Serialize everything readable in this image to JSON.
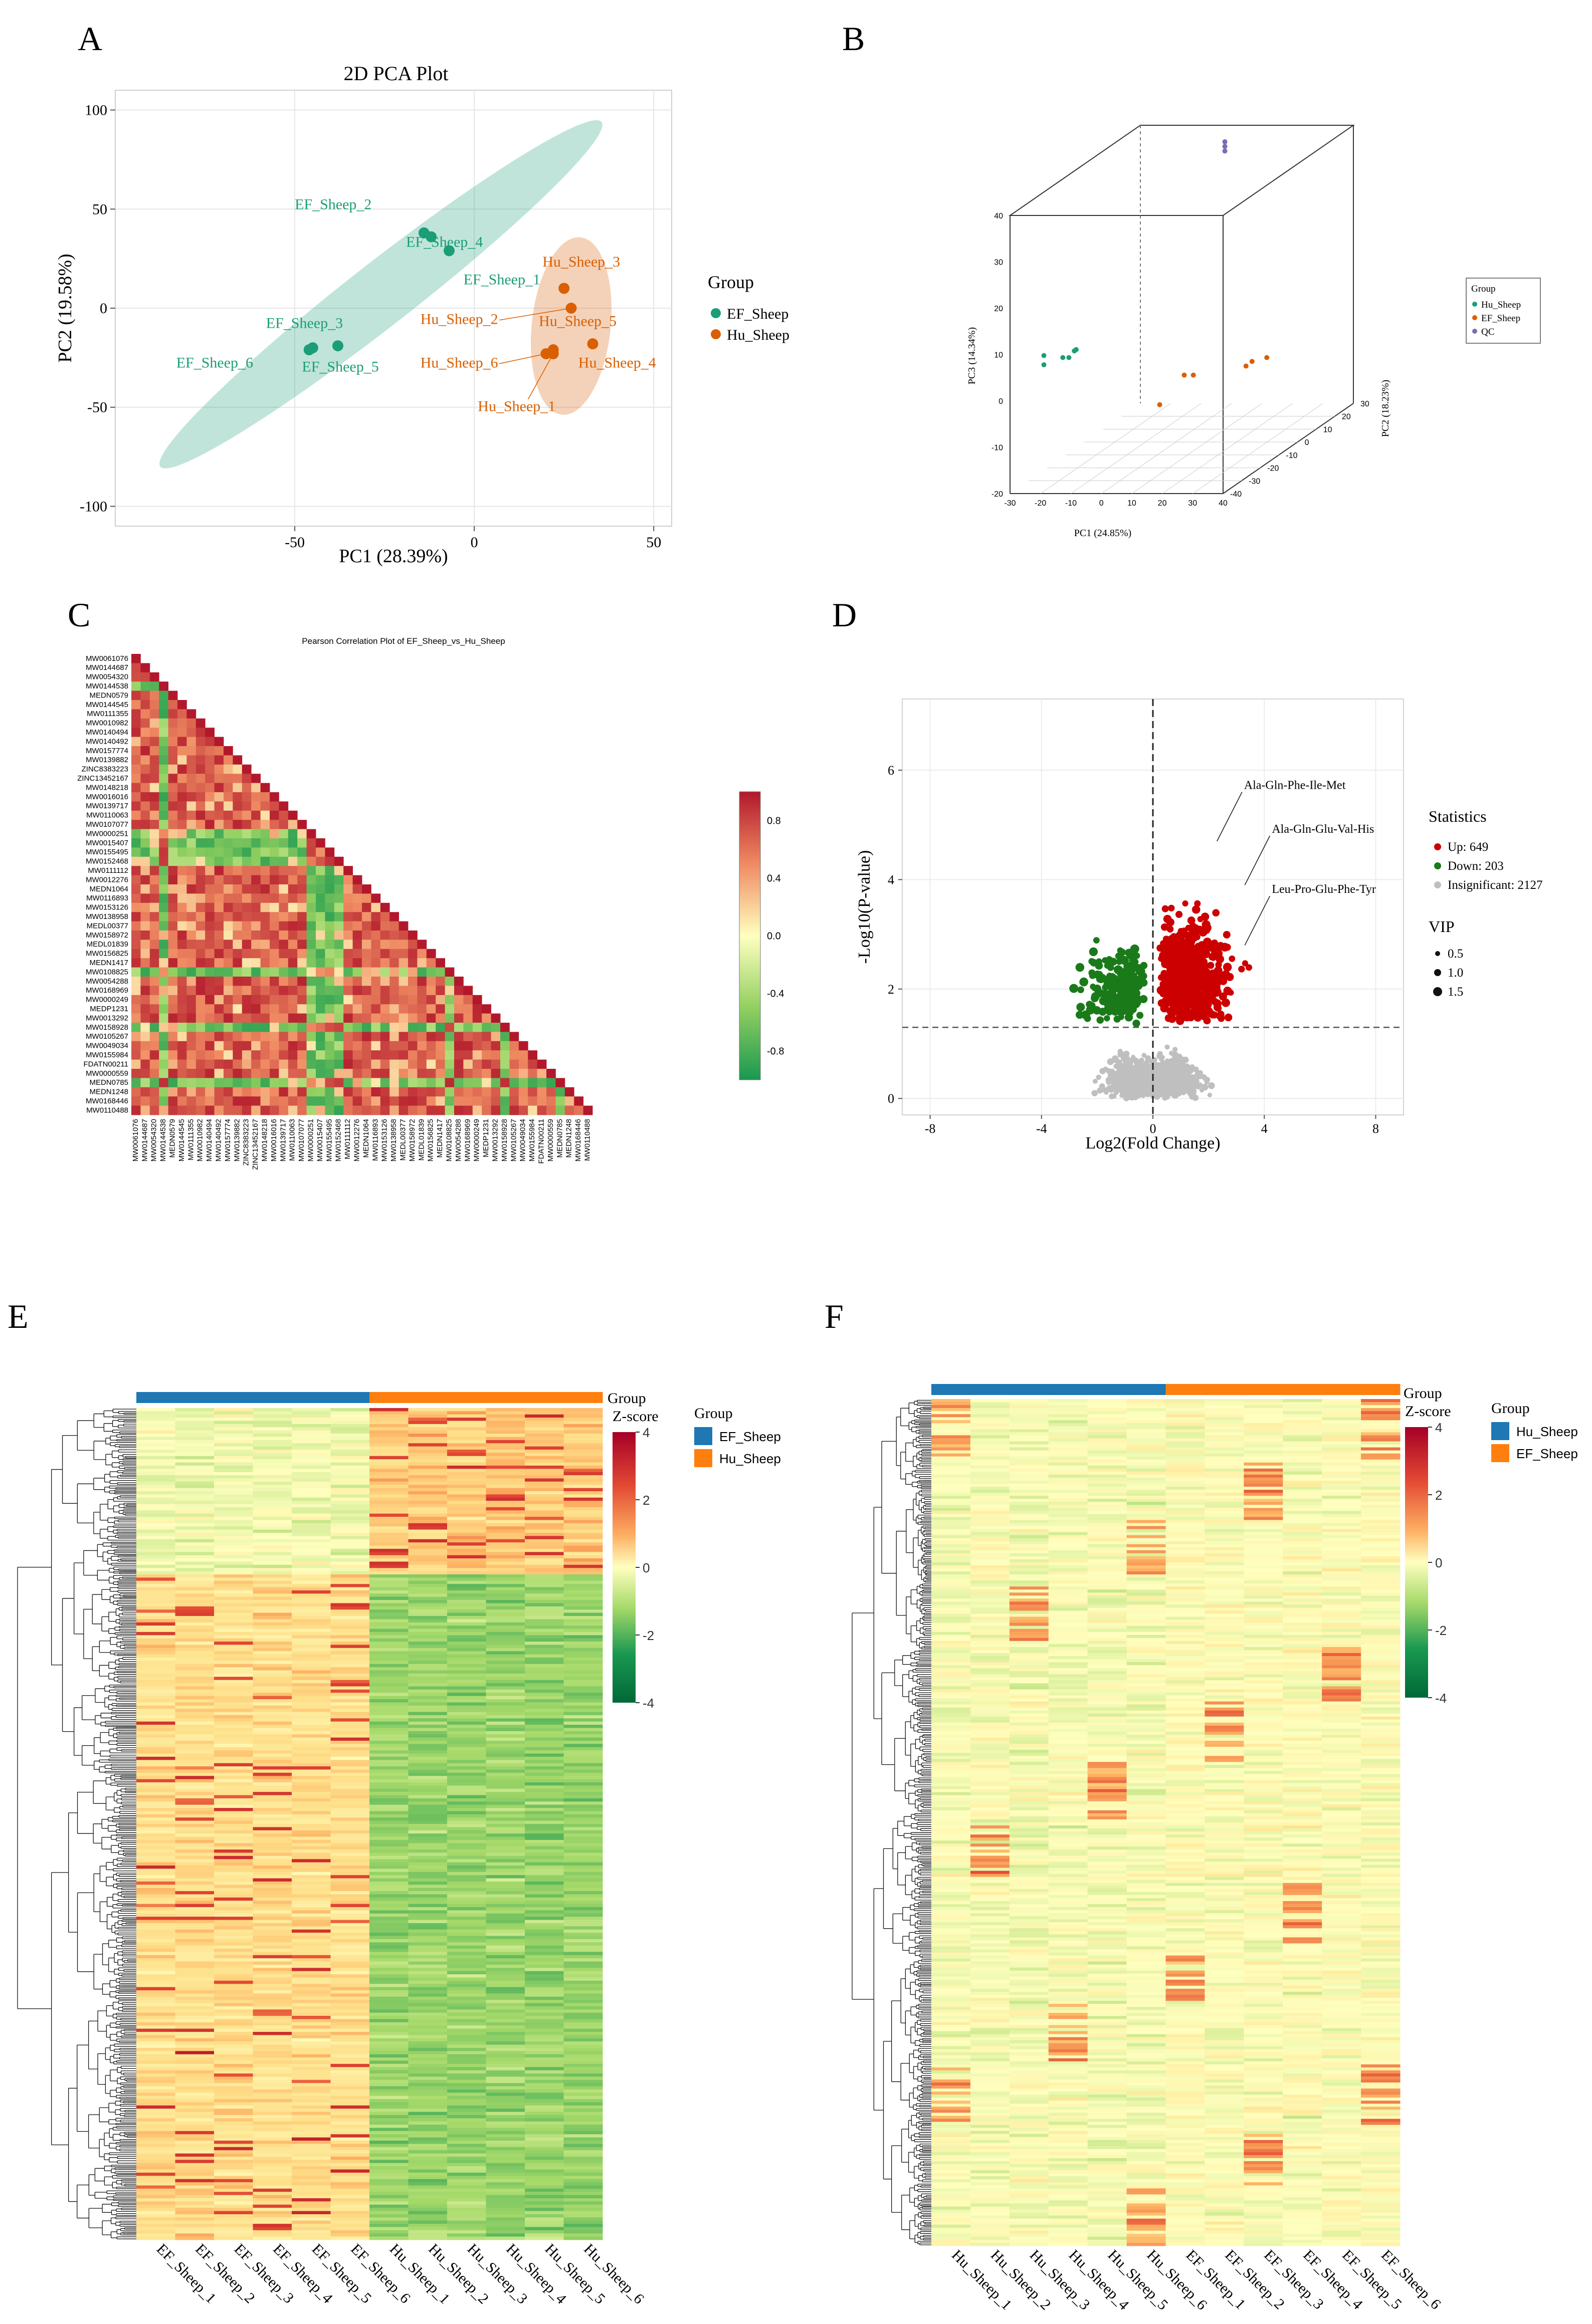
{
  "colors": {
    "ef_green": "#1b9e77",
    "hu_orange": "#d95f02",
    "qc_purple": "#7570b3",
    "up_red": "#cc0000",
    "down_green": "#1a7a1a",
    "insig_grey": "#bfbfbf",
    "hm_blue": "#1f77b4",
    "hm_orange": "#ff7f0e"
  },
  "chart_data": [
    {
      "panel": "A",
      "type": "scatter",
      "title": "2D PCA Plot",
      "xlabel": "PC1 (28.39%)",
      "ylabel": "PC2 (19.58%)",
      "xlim": [
        -100,
        55
      ],
      "ylim": [
        -110,
        110
      ],
      "xticks": [
        -50,
        0,
        50
      ],
      "yticks": [
        -100,
        -50,
        0,
        50,
        100
      ],
      "legend_title": "Group",
      "series": [
        {
          "name": "EF_Sheep",
          "points": [
            {
              "label": "EF_Sheep_2",
              "x": -14,
              "y": 38
            },
            {
              "label": "EF_Sheep_4",
              "x": -7,
              "y": 29
            },
            {
              "label": "EF_Sheep_1",
              "x": -12,
              "y": 36
            },
            {
              "label": "EF_Sheep_3",
              "x": -45,
              "y": -20
            },
            {
              "label": "EF_Sheep_6",
              "x": -46,
              "y": -21
            },
            {
              "label": "EF_Sheep_5",
              "x": -38,
              "y": -19
            }
          ]
        },
        {
          "name": "Hu_Sheep",
          "points": [
            {
              "label": "Hu_Sheep_3",
              "x": 25,
              "y": 10
            },
            {
              "label": "Hu_Sheep_2",
              "x": 27,
              "y": 0
            },
            {
              "label": "Hu_Sheep_5",
              "x": 22,
              "y": -21
            },
            {
              "label": "Hu_Sheep_6",
              "x": 20,
              "y": -23
            },
            {
              "label": "Hu_Sheep_4",
              "x": 33,
              "y": -18
            },
            {
              "label": "Hu_Sheep_1",
              "x": 22,
              "y": -23
            }
          ]
        }
      ]
    },
    {
      "panel": "B",
      "type": "scatter",
      "title": "",
      "xlabel": "PC1 (24.85%)",
      "ylabel": "PC2 (18.23%)",
      "zlabel": "PC3 (14.34%)",
      "xticks": [
        -30,
        -20,
        -10,
        0,
        10,
        20,
        30,
        40
      ],
      "yticks": [
        -40,
        -30,
        -20,
        -10,
        0,
        10,
        20,
        30
      ],
      "zticks": [
        -20,
        -10,
        0,
        10,
        20,
        30,
        40
      ],
      "legend_title": "Group",
      "series": [
        {
          "name": "Hu_Sheep",
          "points": [
            [
              -25,
              -30,
              5
            ],
            [
              -25,
              -30,
              7
            ],
            [
              -20,
              -28,
              6
            ],
            [
              -18,
              -28,
              6
            ],
            [
              -15,
              -30,
              8
            ],
            [
              -15,
              -29,
              8
            ]
          ]
        },
        {
          "name": "EF_Sheep",
          "points": [
            [
              20,
              5,
              -5
            ],
            [
              22,
              5,
              -4
            ],
            [
              25,
              8,
              -4
            ],
            [
              15,
              -20,
              0
            ],
            [
              18,
              -20,
              0
            ],
            [
              10,
              -25,
              -5
            ]
          ]
        },
        {
          "name": "QC",
          "points": [
            [
              10,
              10,
              40
            ],
            [
              10,
              10,
              41
            ],
            [
              10,
              10,
              42
            ]
          ]
        }
      ]
    },
    {
      "panel": "C",
      "type": "heatmap",
      "title": "Pearson Correlation Plot of EF_Sheep_vs_Hu_Sheep",
      "labels": [
        "MW0061076",
        "MW0144687",
        "MW0054320",
        "MW0144538",
        "MEDN0579",
        "MW0144545",
        "MW0111355",
        "MW0010982",
        "MW0140494",
        "MW0140492",
        "MW0157774",
        "MW0139882",
        "ZINC8383223",
        "ZINC13452167",
        "MW0148218",
        "MW0016016",
        "MW0139717",
        "MW0110063",
        "MW0107077",
        "MW0000251",
        "MW0015407",
        "MW0155495",
        "MW0152468",
        "MW0111112",
        "MW0012276",
        "MEDN1064",
        "MW0116893",
        "MW0153126",
        "MW0138958",
        "MEDL00377",
        "MW0158972",
        "MEDL01839",
        "MW0156825",
        "MEDN1417",
        "MW0108825",
        "MW0054288",
        "MW0168969",
        "MW0000249",
        "MEDP1231",
        "MW0013292",
        "MW0158928",
        "MW0105267",
        "MW0049034",
        "MW0155984",
        "FDATN00211",
        "MW0000559",
        "MEDN0785",
        "MEDN1248",
        "MW0168446",
        "MW0110488"
      ],
      "colorbar_ticks": [
        "0.8",
        "0.4",
        "0.0",
        "-0.4",
        "-0.8"
      ],
      "value_range": [
        -1,
        1
      ]
    },
    {
      "panel": "D",
      "type": "scatter",
      "title": "",
      "xlabel": "Log2(Fold Change)",
      "ylabel": "-Log10(P-value)",
      "xlim": [
        -9,
        9
      ],
      "ylim": [
        -0.3,
        7.3
      ],
      "xticks": [
        -8,
        -4,
        0,
        4,
        8
      ],
      "yticks": [
        0,
        2,
        4,
        6
      ],
      "threshold_y": 1.3,
      "threshold_x": 0,
      "legend_title": "Statistics",
      "legend_items": [
        "Up: 649",
        "Down: 203",
        "Insignificant: 2127"
      ],
      "vip_title": "VIP",
      "vip_items": [
        "0.5",
        "1.0",
        "1.5"
      ],
      "counts": {
        "up": 649,
        "down": 203,
        "insignificant": 2127
      },
      "annotations": [
        {
          "text": "Ala-Gln-Phe-Ile-Met",
          "x": 2.3,
          "y": 4.7
        },
        {
          "text": "Ala-Gln-Glu-Val-His",
          "x": 3.3,
          "y": 3.9
        },
        {
          "text": "Leu-Pro-Glu-Phe-Tyr",
          "x": 3.3,
          "y": 2.8
        }
      ]
    },
    {
      "panel": "E",
      "type": "heatmap",
      "samples": [
        "EF_Sheep_1",
        "EF_Sheep_2",
        "EF_Sheep_3",
        "EF_Sheep_4",
        "EF_Sheep_5",
        "EF_Sheep_6",
        "Hu_Sheep_1",
        "Hu_Sheep_2",
        "Hu_Sheep_3",
        "Hu_Sheep_4",
        "Hu_Sheep_5",
        "Hu_Sheep_6"
      ],
      "groups": [
        "EF_Sheep",
        "EF_Sheep",
        "EF_Sheep",
        "EF_Sheep",
        "EF_Sheep",
        "EF_Sheep",
        "Hu_Sheep",
        "Hu_Sheep",
        "Hu_Sheep",
        "Hu_Sheep",
        "Hu_Sheep",
        "Hu_Sheep"
      ],
      "legend_title": "Group",
      "legend_items": [
        "EF_Sheep",
        "Hu_Sheep"
      ],
      "colorbar_title": "Z-score",
      "colorbar_ticks": [
        "4",
        "2",
        "0",
        "-2",
        "-4"
      ],
      "zlim": [
        -4,
        4
      ]
    },
    {
      "panel": "F",
      "type": "heatmap",
      "samples": [
        "Hu_Sheep_1",
        "Hu_Sheep_2",
        "Hu_Sheep_3",
        "Hu_Sheep_4",
        "Hu_Sheep_5",
        "Hu_Sheep_6",
        "EF_Sheep_1",
        "EF_Sheep_2",
        "EF_Sheep_3",
        "EF_Sheep_4",
        "EF_Sheep_5",
        "EF_Sheep_6"
      ],
      "groups": [
        "Hu_Sheep",
        "Hu_Sheep",
        "Hu_Sheep",
        "Hu_Sheep",
        "Hu_Sheep",
        "Hu_Sheep",
        "EF_Sheep",
        "EF_Sheep",
        "EF_Sheep",
        "EF_Sheep",
        "EF_Sheep",
        "EF_Sheep"
      ],
      "legend_title": "Group",
      "legend_items": [
        "Hu_Sheep",
        "EF_Sheep"
      ],
      "colorbar_title": "Z-score",
      "colorbar_ticks": [
        "4",
        "2",
        "0",
        "-2",
        "-4"
      ],
      "zlim": [
        -4,
        4
      ]
    }
  ],
  "panels": {
    "a": {
      "letter": "A",
      "title": "2D PCA Plot",
      "legend_title": "Group",
      "legend_ef": "EF_Sheep",
      "legend_hu": "Hu_Sheep",
      "xlabel": "PC1 (28.39%)",
      "ylabel": "PC2 (19.58%)"
    },
    "b": {
      "letter": "B",
      "legend_title": "Group",
      "legend_hu": "Hu_Sheep",
      "legend_ef": "EF_Sheep",
      "legend_qc": "QC",
      "xlabel": "PC1 (24.85%)",
      "ylabel": "PC2 (18.23%)",
      "zlabel": "PC3 (14.34%)"
    },
    "c": {
      "letter": "C",
      "title": "Pearson Correlation Plot of EF_Sheep_vs_Hu_Sheep"
    },
    "d": {
      "letter": "D",
      "legend_title": "Statistics",
      "legend_up": "Up: 649",
      "legend_down": "Down: 203",
      "legend_insig": "Insignificant: 2127",
      "vip_title": "VIP",
      "vip_1": "0.5",
      "vip_2": "1.0",
      "vip_3": "1.5",
      "xlabel": "Log2(Fold Change)",
      "ylabel": "-Log10(P-value)",
      "annot_1": "Ala-Gln-Phe-Ile-Met",
      "annot_2": "Ala-Gln-Glu-Val-His",
      "annot_3": "Leu-Pro-Glu-Phe-Tyr"
    },
    "e": {
      "letter": "E",
      "group_label": "Group",
      "zscore_label": "Z-score",
      "legend_title": "Group",
      "legend_1": "EF_Sheep",
      "legend_2": "Hu_Sheep"
    },
    "f": {
      "letter": "F",
      "group_label": "Group",
      "zscore_label": "Z-score",
      "legend_title": "Group",
      "legend_1": "Hu_Sheep",
      "legend_2": "EF_Sheep"
    }
  }
}
